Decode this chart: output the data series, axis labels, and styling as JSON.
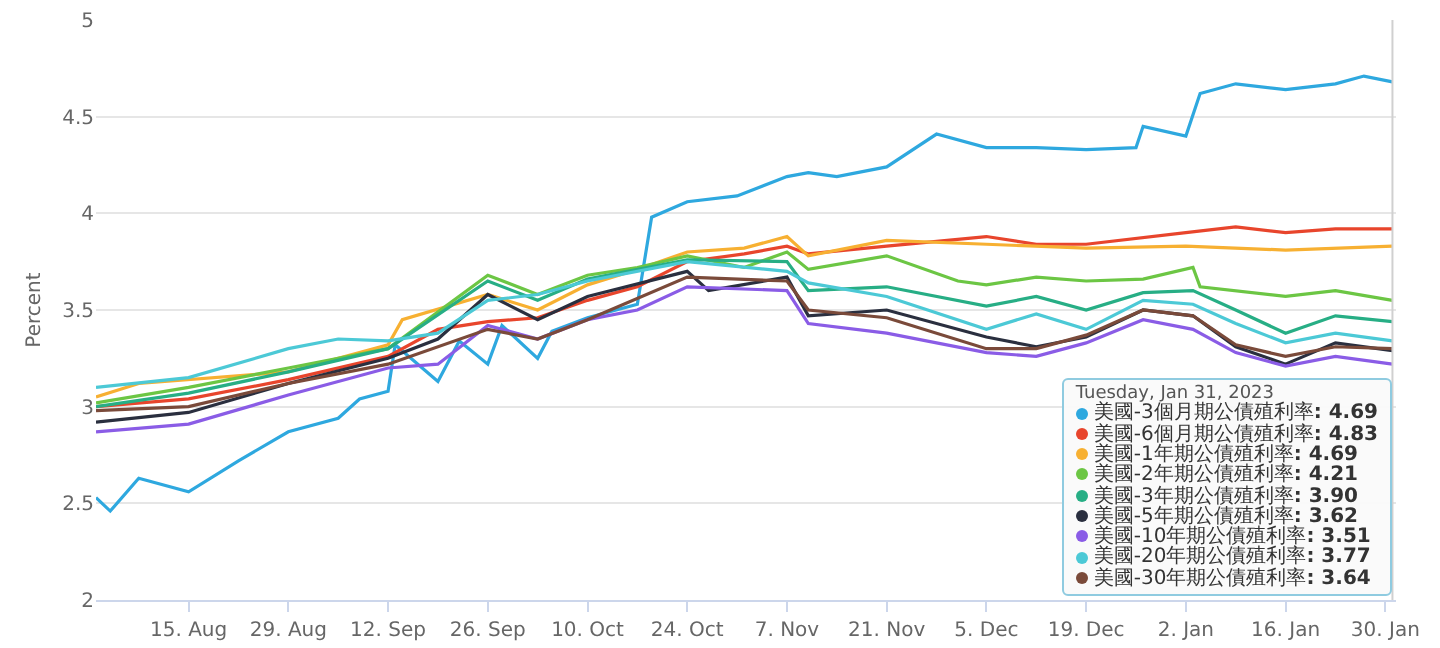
{
  "chart_data": {
    "type": "line",
    "ylabel": "Percent",
    "legend_title": "Tuesday, Jan 31, 2023",
    "legend": "bottom right",
    "grid": "y",
    "marker": "none",
    "line_style": "solid",
    "xlim": [
      "2022-08-02",
      "2023-01-31T12:00"
    ],
    "xticks": [
      {
        "value": "2022-08-15",
        "label": "15. Aug"
      },
      {
        "value": "2022-08-29",
        "label": "29. Aug"
      },
      {
        "value": "2022-09-12",
        "label": "12. Sep"
      },
      {
        "value": "2022-09-26",
        "label": "26. Sep"
      },
      {
        "value": "2022-10-10",
        "label": "10. Oct"
      },
      {
        "value": "2022-10-24",
        "label": "24. Oct"
      },
      {
        "value": "2022-11-07",
        "label": "7. Nov"
      },
      {
        "value": "2022-11-21",
        "label": "21. Nov"
      },
      {
        "value": "2022-12-05",
        "label": "5. Dec"
      },
      {
        "value": "2022-12-19",
        "label": "19. Dec"
      },
      {
        "value": "2023-01-02",
        "label": "2. Jan"
      },
      {
        "value": "2023-01-16",
        "label": "16. Jan"
      },
      {
        "value": "2023-01-30",
        "label": "30. Jan"
      }
    ],
    "ylim": [
      2,
      5
    ],
    "yticks": [
      2,
      2.5,
      3,
      3.5,
      4,
      4.5,
      5
    ],
    "ref_lines": [
      {
        "axis": "x",
        "value": "2023-01-31",
        "label": null,
        "color": "#d0d0d0"
      }
    ],
    "annotations": [
      ": 4.69",
      ": 4.83",
      ": 4.69",
      ": 4.21",
      ": 3.90",
      ": 3.62",
      ": 3.51",
      ": 3.77",
      ": 3.64"
    ],
    "series": [
      {
        "name": "美國-3個月期公債殖利率",
        "color": "#2ea8df",
        "x": [
          "2022-08-02",
          "2022-08-04",
          "2022-08-08",
          "2022-08-15",
          "2022-08-22",
          "2022-08-29",
          "2022-09-05",
          "2022-09-08",
          "2022-09-12",
          "2022-09-13",
          "2022-09-19",
          "2022-09-22",
          "2022-09-26",
          "2022-09-28",
          "2022-10-03",
          "2022-10-05",
          "2022-10-10",
          "2022-10-17",
          "2022-10-19",
          "2022-10-24",
          "2022-10-31",
          "2022-11-07",
          "2022-11-10",
          "2022-11-14",
          "2022-11-21",
          "2022-11-28",
          "2022-12-05",
          "2022-12-12",
          "2022-12-19",
          "2022-12-26",
          "2022-12-27",
          "2023-01-02",
          "2023-01-04",
          "2023-01-09",
          "2023-01-16",
          "2023-01-23",
          "2023-01-27",
          "2023-01-31"
        ],
        "values": [
          2.53,
          2.46,
          2.63,
          2.56,
          2.72,
          2.87,
          2.94,
          3.04,
          3.08,
          3.32,
          3.13,
          3.34,
          3.22,
          3.42,
          3.25,
          3.39,
          3.46,
          3.53,
          3.98,
          4.06,
          4.09,
          4.19,
          4.21,
          4.19,
          4.24,
          4.41,
          4.34,
          4.34,
          4.33,
          4.34,
          4.45,
          4.4,
          4.62,
          4.67,
          4.64,
          4.67,
          4.71,
          4.68
        ]
      },
      {
        "name": "美國-6個月期公債殖利率",
        "color": "#e8452c",
        "x": [
          "2022-08-02",
          "2022-08-15",
          "2022-08-29",
          "2022-09-12",
          "2022-09-19",
          "2022-09-26",
          "2022-10-03",
          "2022-10-10",
          "2022-10-17",
          "2022-10-24",
          "2022-11-01",
          "2022-11-07",
          "2022-11-10",
          "2022-11-21",
          "2022-12-05",
          "2022-12-12",
          "2022-12-19",
          "2023-01-02",
          "2023-01-09",
          "2023-01-16",
          "2023-01-23",
          "2023-01-31"
        ],
        "values": [
          3.0,
          3.04,
          3.14,
          3.26,
          3.4,
          3.44,
          3.46,
          3.55,
          3.62,
          3.75,
          3.79,
          3.83,
          3.79,
          3.83,
          3.88,
          3.84,
          3.84,
          3.9,
          3.93,
          3.9,
          3.92,
          3.92
        ]
      },
      {
        "name": "美國-1年期公債殖利率",
        "color": "#f7b032",
        "x": [
          "2022-08-02",
          "2022-08-08",
          "2022-08-29",
          "2022-09-12",
          "2022-09-14",
          "2022-09-26",
          "2022-10-03",
          "2022-10-10",
          "2022-10-17",
          "2022-10-24",
          "2022-11-01",
          "2022-11-07",
          "2022-11-10",
          "2022-11-21",
          "2022-12-05",
          "2022-12-19",
          "2023-01-02",
          "2023-01-16",
          "2023-01-31"
        ],
        "values": [
          3.05,
          3.12,
          3.18,
          3.32,
          3.45,
          3.58,
          3.5,
          3.63,
          3.71,
          3.8,
          3.82,
          3.88,
          3.78,
          3.86,
          3.84,
          3.82,
          3.83,
          3.81,
          3.83
        ]
      },
      {
        "name": "美國-2年期公債殖利率",
        "color": "#6cc644",
        "x": [
          "2022-08-02",
          "2022-08-15",
          "2022-08-29",
          "2022-09-12",
          "2022-09-26",
          "2022-10-03",
          "2022-10-10",
          "2022-10-17",
          "2022-10-24",
          "2022-11-01",
          "2022-11-07",
          "2022-11-10",
          "2022-11-21",
          "2022-12-01",
          "2022-12-05",
          "2022-12-12",
          "2022-12-19",
          "2022-12-27",
          "2023-01-03",
          "2023-01-04",
          "2023-01-16",
          "2023-01-23",
          "2023-01-31"
        ],
        "values": [
          3.02,
          3.1,
          3.2,
          3.3,
          3.68,
          3.58,
          3.68,
          3.72,
          3.78,
          3.72,
          3.8,
          3.71,
          3.78,
          3.65,
          3.63,
          3.67,
          3.65,
          3.66,
          3.72,
          3.62,
          3.57,
          3.6,
          3.55
        ]
      },
      {
        "name": "美國-3年期公債殖利率",
        "color": "#27ae85",
        "x": [
          "2022-08-02",
          "2022-08-15",
          "2022-08-29",
          "2022-09-12",
          "2022-09-26",
          "2022-10-03",
          "2022-10-10",
          "2022-10-24",
          "2022-11-07",
          "2022-11-10",
          "2022-11-21",
          "2022-12-05",
          "2022-12-12",
          "2022-12-19",
          "2022-12-27",
          "2023-01-03",
          "2023-01-09",
          "2023-01-16",
          "2023-01-23",
          "2023-01-31"
        ],
        "values": [
          3.0,
          3.07,
          3.18,
          3.3,
          3.65,
          3.55,
          3.66,
          3.76,
          3.75,
          3.6,
          3.62,
          3.52,
          3.57,
          3.5,
          3.59,
          3.6,
          3.5,
          3.38,
          3.47,
          3.44
        ]
      },
      {
        "name": "美國-5年期公債殖利率",
        "color": "#2a2f3f",
        "x": [
          "2022-08-02",
          "2022-08-15",
          "2022-08-29",
          "2022-09-12",
          "2022-09-19",
          "2022-09-26",
          "2022-10-03",
          "2022-10-10",
          "2022-10-24",
          "2022-10-27",
          "2022-11-07",
          "2022-11-10",
          "2022-11-21",
          "2022-12-05",
          "2022-12-12",
          "2022-12-19",
          "2022-12-27",
          "2023-01-03",
          "2023-01-09",
          "2023-01-16",
          "2023-01-23",
          "2023-01-31"
        ],
        "values": [
          2.92,
          2.97,
          3.12,
          3.25,
          3.35,
          3.58,
          3.45,
          3.57,
          3.7,
          3.6,
          3.67,
          3.47,
          3.5,
          3.36,
          3.31,
          3.36,
          3.5,
          3.47,
          3.31,
          3.22,
          3.33,
          3.29
        ]
      },
      {
        "name": "美國-10年期公債殖利率",
        "color": "#8a5ce6",
        "x": [
          "2022-08-02",
          "2022-08-15",
          "2022-08-29",
          "2022-09-12",
          "2022-09-19",
          "2022-09-26",
          "2022-10-03",
          "2022-10-10",
          "2022-10-17",
          "2022-10-24",
          "2022-11-07",
          "2022-11-10",
          "2022-11-21",
          "2022-12-05",
          "2022-12-12",
          "2022-12-19",
          "2022-12-27",
          "2023-01-03",
          "2023-01-09",
          "2023-01-16",
          "2023-01-23",
          "2023-01-31"
        ],
        "values": [
          2.87,
          2.91,
          3.06,
          3.2,
          3.22,
          3.42,
          3.35,
          3.45,
          3.5,
          3.62,
          3.6,
          3.43,
          3.38,
          3.28,
          3.26,
          3.33,
          3.45,
          3.4,
          3.28,
          3.21,
          3.26,
          3.22
        ]
      },
      {
        "name": "美國-20年期公債殖利率",
        "color": "#4cc9d6",
        "x": [
          "2022-08-02",
          "2022-08-15",
          "2022-08-29",
          "2022-09-05",
          "2022-09-12",
          "2022-09-19",
          "2022-09-26",
          "2022-10-03",
          "2022-10-10",
          "2022-10-24",
          "2022-11-07",
          "2022-11-10",
          "2022-11-21",
          "2022-12-05",
          "2022-12-12",
          "2022-12-19",
          "2022-12-27",
          "2023-01-03",
          "2023-01-09",
          "2023-01-16",
          "2023-01-23",
          "2023-01-31"
        ],
        "values": [
          3.1,
          3.15,
          3.3,
          3.35,
          3.34,
          3.38,
          3.55,
          3.58,
          3.65,
          3.75,
          3.7,
          3.64,
          3.57,
          3.4,
          3.48,
          3.4,
          3.55,
          3.53,
          3.43,
          3.33,
          3.38,
          3.34
        ]
      },
      {
        "name": "美國-30年期公債殖利率",
        "color": "#7a4a3a",
        "x": [
          "2022-08-02",
          "2022-08-15",
          "2022-08-29",
          "2022-09-12",
          "2022-09-26",
          "2022-10-03",
          "2022-10-10",
          "2022-10-24",
          "2022-11-07",
          "2022-11-10",
          "2022-11-21",
          "2022-12-05",
          "2022-12-12",
          "2022-12-19",
          "2022-12-27",
          "2023-01-03",
          "2023-01-09",
          "2023-01-16",
          "2023-01-23",
          "2023-01-31"
        ],
        "values": [
          2.98,
          3.0,
          3.12,
          3.22,
          3.4,
          3.35,
          3.45,
          3.67,
          3.65,
          3.5,
          3.46,
          3.3,
          3.3,
          3.37,
          3.5,
          3.47,
          3.32,
          3.26,
          3.31,
          3.3
        ]
      }
    ]
  }
}
